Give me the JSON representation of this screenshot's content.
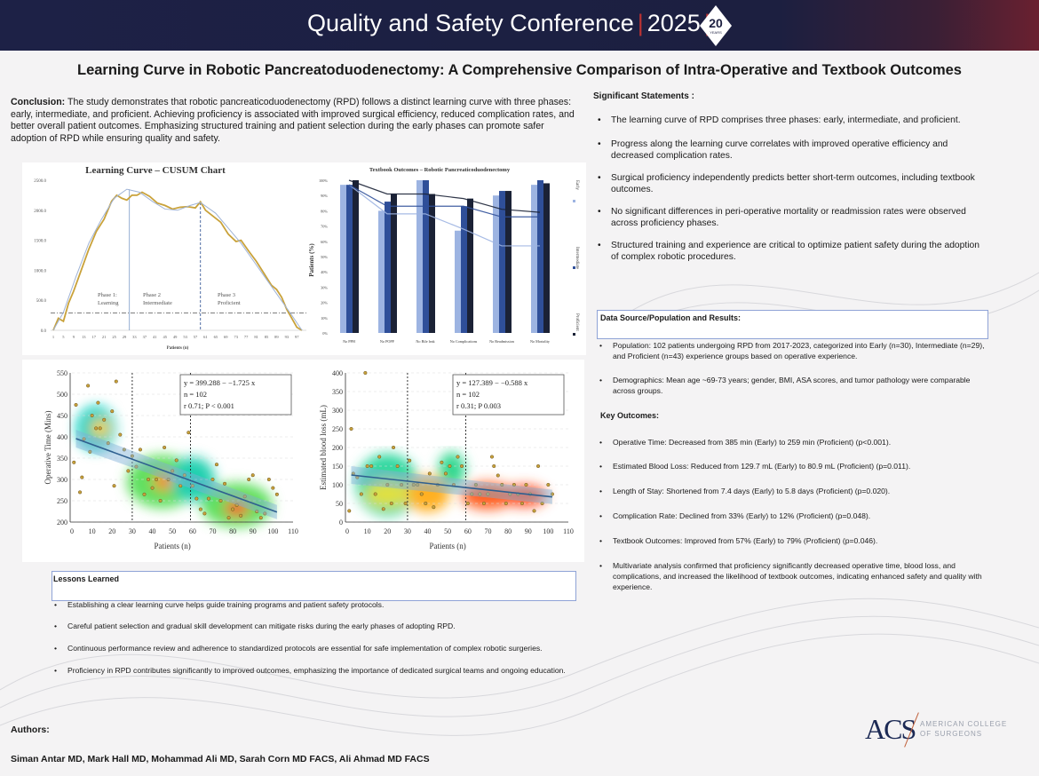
{
  "header": {
    "conference": "Quality and Safety Conference",
    "year": "2025",
    "badge_number": "20",
    "badge_text": "YEARS"
  },
  "title": "Learning Curve in Robotic Pancreatoduodenectomy: A Comprehensive Comparison of Intra-Operative and Textbook Outcomes",
  "conclusion": {
    "label": "Conclusion:",
    "text": " The study demonstrates that robotic pancreaticoduodenectomy (RPD) follows a distinct learning curve with three phases: early, intermediate, and proficient. Achieving proficiency is associated with improved surgical efficiency, reduced complication rates, and better overall patient outcomes. Emphasizing structured training and patient selection during the early phases can promote safer adoption of RPD while ensuring quality and safety."
  },
  "significant": {
    "heading": "Significant Statements :",
    "items": [
      "The learning curve of RPD comprises three phases: early, intermediate, and proficient.",
      "Progress along the learning curve correlates with improved operative efficiency and decreased complication rates.",
      "Surgical proficiency independently predicts better short-term outcomes, including textbook outcomes.",
      "No significant differences in peri-operative mortality or readmission rates were observed across proficiency phases.",
      "Structured training and experience are critical to optimize patient safety during the adoption of complex robotic procedures."
    ]
  },
  "data_source": {
    "heading": "Data Source/Population and Results:",
    "items": [
      "Population: 102 patients undergoing RPD from 2017-2023, categorized into Early (n=30), Intermediate (n=29), and Proficient (n=43) experience groups based on operative experience.",
      "Demographics: Mean age ~69-73 years; gender, BMI, ASA scores, and tumor pathology were comparable across groups."
    ]
  },
  "key_outcomes": {
    "heading": "Key Outcomes:",
    "items": [
      "Operative Time: Decreased from 385 min (Early) to 259 min (Proficient) (p<0.001).",
      "Estimated Blood Loss: Reduced from 129.7 mL (Early) to 80.9 mL (Proficient) (p=0.011).",
      "Length of Stay: Shortened from 7.4 days (Early) to 5.8 days (Proficient) (p=0.020).",
      "Complication Rate: Declined from 33% (Early) to 12% (Proficient) (p=0.048).",
      "Textbook Outcomes: Improved from 57% (Early) to 79% (Proficient) (p=0.046).",
      "Multivariate analysis confirmed that proficiency significantly decreased operative time, blood loss, and complications, and increased the likelihood of textbook outcomes, indicating enhanced safety and quality with experience."
    ]
  },
  "lessons": {
    "heading": "Lessons Learned",
    "items": [
      "Establishing a clear learning curve helps guide training programs and patient safety protocols.",
      "Careful patient selection and gradual skill development can mitigate risks during the early phases of adopting RPD.",
      "Continuous performance review and adherence to standardized protocols are essential for safe implementation of complex robotic surgeries.",
      "Proficiency in RPD contributes significantly to improved outcomes, emphasizing the importance of dedicated surgical teams and ongoing education."
    ]
  },
  "authors": {
    "heading": "Authors:",
    "names": "Siman Antar MD, Mark Hall MD, Mohammad Ali MD, Sarah Corn MD FACS, Ali Ahmad MD FACS"
  },
  "logo": {
    "mark": "ACS",
    "line1": "AMERICAN COLLEGE",
    "line2": "OF SURGEONS"
  },
  "chart_data": [
    {
      "type": "line",
      "title": "Learning Curve – CUSUM Chart",
      "xlabel": "Patients (n)",
      "ylabel": "",
      "ylim": [
        0,
        2500
      ],
      "xlim": [
        1,
        99
      ],
      "yticks": [
        "0.0",
        "500.0",
        "1000.0",
        "1500.0",
        "2000.0",
        "2500.0"
      ],
      "xticks": [
        "1",
        "5",
        "9",
        "13",
        "17",
        "21",
        "25",
        "29",
        "33",
        "37",
        "41",
        "45",
        "49",
        "53",
        "57",
        "61",
        "65",
        "69",
        "73",
        "77",
        "81",
        "85",
        "89",
        "93",
        "97"
      ],
      "series": [
        {
          "name": "CUSUM",
          "color": "#c9a23a",
          "x": [
            1,
            3,
            5,
            7,
            9,
            12,
            15,
            18,
            21,
            24,
            26,
            28,
            30,
            32,
            34,
            36,
            39,
            42,
            45,
            48,
            51,
            54,
            57,
            59,
            61,
            64,
            67,
            70,
            73,
            75,
            78,
            81,
            84,
            87,
            89,
            91,
            93,
            95,
            97,
            99
          ],
          "y": [
            0,
            200,
            150,
            450,
            650,
            1000,
            1350,
            1650,
            1850,
            2150,
            2250,
            2200,
            2170,
            2250,
            2250,
            2300,
            2230,
            2120,
            2080,
            2020,
            2050,
            2060,
            2040,
            2140,
            2000,
            1900,
            1800,
            1600,
            1480,
            1500,
            1320,
            1150,
            950,
            750,
            680,
            550,
            350,
            200,
            50,
            0
          ]
        },
        {
          "name": "Fit",
          "color": "#9fb3d6",
          "x": [
            1,
            5,
            10,
            15,
            20,
            25,
            30,
            35,
            40,
            45,
            50,
            55,
            59,
            65,
            70,
            75,
            80,
            85,
            90,
            95,
            99
          ],
          "y": [
            0,
            300,
            900,
            1450,
            1850,
            2200,
            2350,
            2300,
            2150,
            2020,
            2000,
            2080,
            2130,
            1950,
            1700,
            1450,
            1150,
            850,
            550,
            250,
            0
          ]
        }
      ],
      "threshold": 290,
      "phase_boundaries": [
        31,
        59
      ],
      "annotations": [
        "Phase 1: Learning",
        "Phase 2 Intermediate",
        "Phase 3 Proficient"
      ]
    },
    {
      "type": "bar",
      "title": "Textbook Outcomes – Robotic Pancreaticoduodenectomy",
      "ylabel": "Patients (%)",
      "ylim": [
        0,
        100
      ],
      "yticks": [
        "0%",
        "10%",
        "20%",
        "30%",
        "40%",
        "50%",
        "60%",
        "70%",
        "80%",
        "90%",
        "100%"
      ],
      "categories": [
        "No PPH",
        "No POPF",
        "No Bile leak",
        "No Complications",
        "No Readmission",
        "No Mortality"
      ],
      "series": [
        {
          "name": "Early",
          "color": "#9db4e2",
          "values": [
            97,
            80,
            100,
            67,
            90,
            97
          ],
          "trend": [
            97,
            78,
            78,
            68,
            57,
            57
          ]
        },
        {
          "name": "Intermediate",
          "color": "#2f4f99",
          "values": [
            97,
            86,
            100,
            83,
            93,
            100
          ],
          "trend": [
            97,
            83,
            83,
            83,
            76,
            76
          ]
        },
        {
          "name": "Proficient",
          "color": "#1b2236",
          "values": [
            100,
            91,
            91,
            88,
            93,
            98
          ],
          "trend": [
            100,
            91,
            91,
            88,
            81,
            79
          ]
        }
      ],
      "legend": "right"
    },
    {
      "type": "scatter",
      "xlabel": "Patients (n)",
      "ylabel": "Operative Time (Mins)",
      "xlim": [
        0,
        110
      ],
      "ylim": [
        200,
        550
      ],
      "xticks": [
        "0",
        "10",
        "20",
        "30",
        "40",
        "50",
        "60",
        "70",
        "80",
        "90",
        "100",
        "110"
      ],
      "yticks": [
        "200",
        "250",
        "300",
        "350",
        "400",
        "450",
        "500",
        "550"
      ],
      "regression": {
        "intercept": 399.288,
        "slope": -1.725
      },
      "stats": [
        "y = 399.288 − −1.725 x",
        "n = 102",
        "r   0.71; P < 0.001"
      ],
      "phase_boundaries": [
        30,
        59
      ],
      "x": [
        1,
        2,
        4,
        5,
        6,
        8,
        9,
        10,
        12,
        13,
        14,
        16,
        18,
        20,
        21,
        22,
        24,
        26,
        28,
        30,
        32,
        34,
        36,
        38,
        40,
        42,
        44,
        46,
        48,
        50,
        52,
        54,
        56,
        58,
        60,
        62,
        64,
        66,
        68,
        70,
        72,
        74,
        76,
        78,
        80,
        82,
        84,
        86,
        88,
        90,
        92,
        94,
        96,
        98,
        100,
        102
      ],
      "y": [
        340,
        475,
        270,
        305,
        395,
        520,
        365,
        450,
        420,
        480,
        420,
        440,
        385,
        460,
        285,
        530,
        405,
        370,
        320,
        355,
        330,
        370,
        265,
        300,
        280,
        300,
        250,
        375,
        300,
        320,
        345,
        285,
        310,
        410,
        285,
        255,
        230,
        220,
        255,
        300,
        335,
        250,
        290,
        210,
        230,
        240,
        215,
        260,
        300,
        310,
        225,
        210,
        220,
        300,
        280,
        265
      ]
    },
    {
      "type": "scatter",
      "xlabel": "Patients (n)",
      "ylabel": "Estimated blood loss (mL)",
      "xlim": [
        0,
        110
      ],
      "ylim": [
        0,
        400
      ],
      "xticks": [
        "0",
        "10",
        "20",
        "30",
        "40",
        "50",
        "60",
        "70",
        "80",
        "90",
        "100",
        "110"
      ],
      "yticks": [
        "0",
        "50",
        "100",
        "150",
        "200",
        "250",
        "300",
        "350",
        "400"
      ],
      "regression": {
        "intercept": 127.389,
        "slope": -0.588
      },
      "stats": [
        "y = 127.389 − −0.588 x",
        "n = 102",
        "r   0.31; P   0.003"
      ],
      "phase_boundaries": [
        30,
        59
      ],
      "x": [
        1,
        2,
        3,
        5,
        7,
        9,
        10,
        12,
        14,
        16,
        18,
        20,
        22,
        23,
        25,
        27,
        29,
        31,
        33,
        35,
        37,
        39,
        41,
        43,
        45,
        47,
        49,
        51,
        53,
        55,
        57,
        60,
        62,
        64,
        66,
        68,
        70,
        72,
        73,
        75,
        77,
        79,
        81,
        83,
        85,
        87,
        89,
        91,
        93,
        95,
        97,
        100,
        102
      ],
      "y": [
        30,
        250,
        130,
        120,
        75,
        400,
        150,
        150,
        75,
        175,
        35,
        100,
        50,
        200,
        150,
        100,
        50,
        165,
        100,
        100,
        75,
        50,
        130,
        40,
        100,
        160,
        130,
        150,
        100,
        175,
        150,
        50,
        75,
        100,
        75,
        50,
        75,
        175,
        150,
        125,
        100,
        50,
        75,
        100,
        75,
        50,
        100,
        75,
        30,
        150,
        50,
        100,
        75
      ]
    }
  ]
}
